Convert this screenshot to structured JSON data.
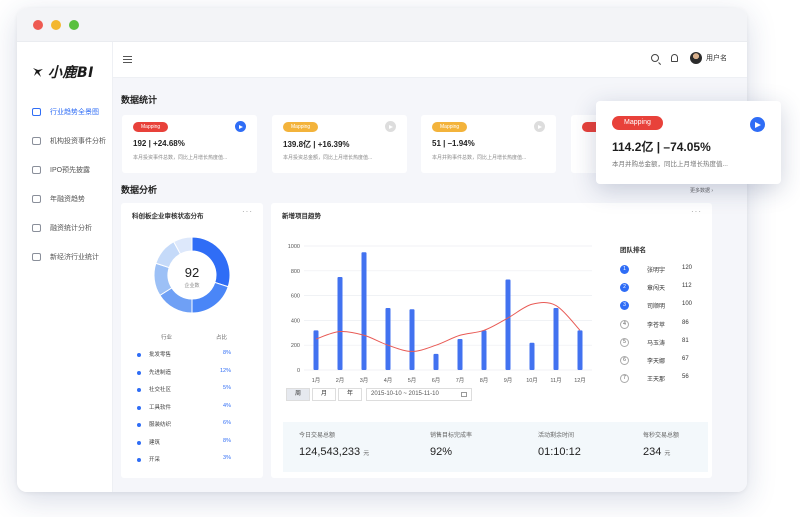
{
  "app": {
    "logo": "小鹿BI"
  },
  "header": {
    "user": "用户名"
  },
  "sidebar": {
    "items": [
      {
        "label": "行业趋势全景图",
        "active": true
      },
      {
        "label": "机构投资事件分析"
      },
      {
        "label": "IPO预先披露"
      },
      {
        "label": "年融资趋势"
      },
      {
        "label": "融资统计分析"
      },
      {
        "label": "新经济行业统计"
      }
    ]
  },
  "stats": {
    "title": "数据统计",
    "cards": [
      {
        "tag": "Mapping",
        "tag_color": "#e8413a",
        "value": "192 | +24.68%",
        "desc": "本月投资事件总数，同比上月增长热度值...",
        "arrow_active": true
      },
      {
        "tag": "Mapping",
        "tag_color": "#f3b33b",
        "value": "139.8亿 | +16.39%",
        "desc": "本月投资总金额，同比上月增长热度值...",
        "arrow_active": false
      },
      {
        "tag": "Mapping",
        "tag_color": "#f3b33b",
        "value": "51 | –1.94%",
        "desc": "本月并购事件总数，同比上月增长热度值...",
        "arrow_active": false
      },
      {
        "tag": "",
        "value": "",
        "desc": "",
        "arrow_active": false
      }
    ]
  },
  "float_card": {
    "tag": "Mapping",
    "value": "114.2亿 | –74.05%",
    "desc": "本月并购总金额，同比上月增长热度值..."
  },
  "analysis": {
    "title": "数据分析",
    "more": "更多数据 ›"
  },
  "donut_panel": {
    "title": "科创板企业审核状态分布",
    "menu": "···",
    "center_value": "92",
    "center_label": "企业数",
    "legend_header_name": "行业",
    "legend_header_pct": "占比",
    "legend": [
      {
        "name": "批发零售",
        "pct": "8%"
      },
      {
        "name": "先进制造",
        "pct": "12%"
      },
      {
        "name": "社交社区",
        "pct": "5%"
      },
      {
        "name": "工具软件",
        "pct": "4%"
      },
      {
        "name": "服装纺织",
        "pct": "6%"
      },
      {
        "name": "建筑",
        "pct": "8%"
      },
      {
        "name": "开采",
        "pct": "3%"
      }
    ],
    "segment_colors": [
      "#2f6df6",
      "#4a86f7",
      "#6fa0f5",
      "#9cc0f6",
      "#c5daf9",
      "#dde8fb"
    ]
  },
  "trend_panel": {
    "title": "新增项目趋势",
    "menu": "···",
    "buttons": [
      "周",
      "月",
      "年"
    ],
    "date_range": "2015-10-10 ~ 2015-11-10",
    "kpis": [
      {
        "label": "今日交易总额",
        "value": "124,543,233",
        "unit": "元"
      },
      {
        "label": "销售目标完成率",
        "value": "92%",
        "unit": ""
      },
      {
        "label": "活动剩余时间",
        "value": "01:10:12",
        "unit": ""
      },
      {
        "label": "每秒交易总额",
        "value": "234",
        "unit": "元"
      }
    ]
  },
  "chart_data": {
    "type": "bar",
    "categories": [
      "1月",
      "2月",
      "3月",
      "4月",
      "5月",
      "6月",
      "7月",
      "8月",
      "9月",
      "10月",
      "11月",
      "12月"
    ],
    "values": [
      320,
      750,
      950,
      500,
      490,
      130,
      250,
      320,
      730,
      220,
      500,
      320
    ],
    "line_values": [
      250,
      310,
      280,
      200,
      150,
      200,
      280,
      320,
      420,
      530,
      520,
      320
    ],
    "yticks": [
      0,
      200,
      400,
      600,
      800,
      1000
    ],
    "ylim": [
      0,
      1000
    ],
    "bar_color": "#4272f0",
    "line_color": "#e85a55",
    "title": "新增项目趋势",
    "xlabel": "",
    "ylabel": ""
  },
  "ranking": {
    "title": "团队排名",
    "rows": [
      {
        "rank": "1",
        "name": "张明宇",
        "value": "120"
      },
      {
        "rank": "2",
        "name": "章闯天",
        "value": "112"
      },
      {
        "rank": "3",
        "name": "司顺明",
        "value": "100"
      },
      {
        "rank": "4",
        "name": "李苍苹",
        "value": "86"
      },
      {
        "rank": "5",
        "name": "马玉涛",
        "value": "81"
      },
      {
        "rank": "6",
        "name": "李天娜",
        "value": "67"
      },
      {
        "rank": "7",
        "name": "王天那",
        "value": "56"
      }
    ]
  }
}
